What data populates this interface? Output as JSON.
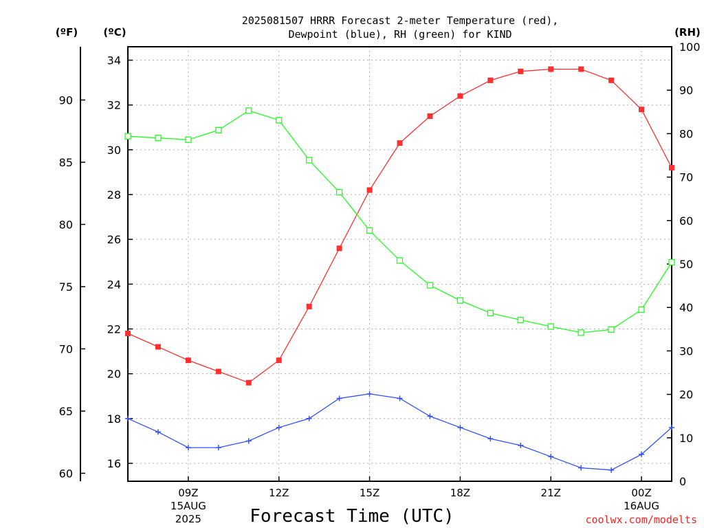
{
  "chart_data": {
    "type": "line",
    "title_lines": [
      "2025081507 HRRR Forecast 2-meter Temperature (red),",
      "Dewpoint (blue), RH (green) for KIND"
    ],
    "xlabel": "Forecast Time (UTC)",
    "credit": "coolwx.com/modelts",
    "units": {
      "f": "(ºF)",
      "c": "(ºC)",
      "rh": "(RH)"
    },
    "x_hours": [
      7,
      8,
      9,
      10,
      11,
      12,
      13,
      14,
      15,
      16,
      17,
      18,
      19,
      20,
      21,
      22,
      23,
      24,
      25
    ],
    "xlim": [
      7,
      25
    ],
    "x_ticks": [
      {
        "x": 9,
        "lines": [
          "09Z",
          "15AUG",
          "2025"
        ]
      },
      {
        "x": 12,
        "lines": [
          "12Z"
        ]
      },
      {
        "x": 15,
        "lines": [
          "15Z"
        ]
      },
      {
        "x": 18,
        "lines": [
          "18Z"
        ]
      },
      {
        "x": 21,
        "lines": [
          "21Z"
        ]
      },
      {
        "x": 24,
        "lines": [
          "00Z",
          "16AUG"
        ]
      }
    ],
    "celsius_axis": {
      "ylim": [
        15.2,
        34.6
      ],
      "ticks": [
        16,
        18,
        20,
        22,
        24,
        26,
        28,
        30,
        32,
        34
      ]
    },
    "fahrenheit_axis": {
      "ticks": [
        60,
        65,
        70,
        75,
        80,
        85,
        90
      ]
    },
    "rh_axis": {
      "ylim": [
        0,
        100
      ],
      "ticks": [
        0,
        10,
        20,
        30,
        40,
        50,
        60,
        70,
        80,
        90,
        100
      ]
    },
    "grid": true,
    "series": [
      {
        "name": "Temperature",
        "axis": "celsius",
        "color": "#ff3030",
        "marker": "filled-square",
        "values": [
          21.8,
          21.2,
          20.6,
          20.1,
          19.6,
          20.6,
          23.0,
          25.6,
          28.2,
          30.3,
          31.5,
          32.4,
          33.1,
          33.5,
          33.6,
          33.6,
          33.1,
          31.8,
          29.2
        ]
      },
      {
        "name": "Dewpoint",
        "axis": "celsius",
        "color": "#3050ff",
        "marker": "plus",
        "values": [
          18.0,
          17.4,
          16.7,
          16.7,
          17.0,
          17.6,
          18.0,
          18.9,
          19.1,
          18.9,
          18.1,
          17.6,
          17.1,
          16.8,
          16.3,
          15.8,
          15.7,
          16.4,
          17.6
        ]
      },
      {
        "name": "RH",
        "axis": "rh",
        "color": "#20ff20",
        "marker": "open-square",
        "values": [
          79.4,
          79.0,
          78.6,
          80.8,
          85.3,
          83.1,
          73.9,
          66.5,
          57.7,
          50.8,
          45.1,
          41.6,
          38.7,
          37.1,
          35.6,
          34.2,
          34.9,
          39.5,
          50.4
        ]
      }
    ]
  }
}
